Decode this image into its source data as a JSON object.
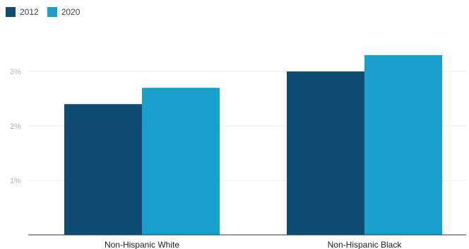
{
  "chart_data": {
    "type": "bar",
    "categories": [
      "Non-Hispanic White",
      "Non-Hispanic Black"
    ],
    "series": [
      {
        "name": "2012",
        "values": [
          2.4,
          3.0
        ]
      },
      {
        "name": "2020",
        "values": [
          2.7,
          3.3
        ]
      }
    ],
    "colors": [
      "#0e4c74",
      "#1aa0cc"
    ],
    "yticks": [
      {
        "value": 1,
        "label": "1%"
      },
      {
        "value": 2,
        "label": "2%"
      },
      {
        "value": 3,
        "label": "3%"
      }
    ],
    "ylim": [
      0,
      4.2
    ],
    "xlabel": "",
    "ylabel": "",
    "grid": true,
    "legend_position": "top-left"
  }
}
